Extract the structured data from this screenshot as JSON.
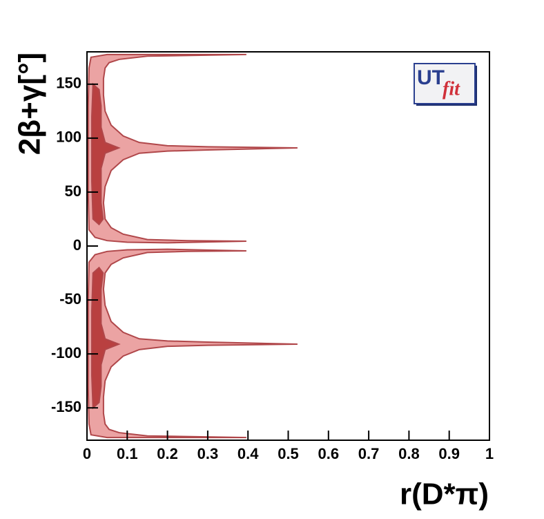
{
  "chart_data": {
    "type": "contour",
    "x_label": "r(D*π)",
    "y_label": "2β+γ[°]",
    "logo": [
      "UT",
      "fit"
    ],
    "xlim": [
      0,
      1
    ],
    "ylim": [
      -180,
      180
    ],
    "xticks": [
      0,
      0.1,
      0.2,
      0.3,
      0.4,
      0.5,
      0.6,
      0.7,
      0.8,
      0.9,
      1
    ],
    "yticks": [
      -150,
      -100,
      -50,
      0,
      50,
      100,
      150
    ],
    "edge_color": "#b0474a",
    "regions": [
      {
        "color": "#eba3a3",
        "x": [
          0.01,
          0.05,
          0.15,
          0.396,
          0.15,
          0.08,
          0.055,
          0.045,
          0.041,
          0.041,
          0.045,
          0.06,
          0.09,
          0.13,
          0.2,
          0.3,
          0.523,
          0.3,
          0.2,
          0.13,
          0.09,
          0.06,
          0.045,
          0.041,
          0.045,
          0.06,
          0.09,
          0.15,
          0.25,
          0.396,
          0.2,
          0.1,
          0.05,
          0.02,
          0.005,
          0.003,
          0.003,
          0.003,
          0.005
        ],
        "y": [
          175,
          177.5,
          177.5,
          177.5,
          176,
          173,
          170,
          165,
          155,
          140,
          125,
          112,
          102,
          96,
          93,
          92,
          91,
          89,
          88,
          86,
          80,
          70,
          55,
          40,
          25,
          17,
          11,
          6,
          5,
          4.5,
          3,
          3.5,
          5,
          8,
          15,
          50,
          90,
          130,
          165
        ]
      },
      {
        "color": "#b94040",
        "x": [
          0.015,
          0.03,
          0.035,
          0.035,
          0.045,
          0.079,
          0.045,
          0.035,
          0.035,
          0.04,
          0.03,
          0.015,
          0.012,
          0.012
        ],
        "y": [
          150,
          145,
          130,
          110,
          96,
          91,
          86,
          72,
          40,
          25,
          20,
          25,
          60,
          120
        ]
      },
      {
        "color": "#eba3a3",
        "x": [
          0.01,
          0.05,
          0.15,
          0.396,
          0.15,
          0.08,
          0.055,
          0.045,
          0.041,
          0.041,
          0.045,
          0.06,
          0.09,
          0.13,
          0.2,
          0.3,
          0.523,
          0.3,
          0.2,
          0.13,
          0.09,
          0.06,
          0.045,
          0.041,
          0.045,
          0.06,
          0.09,
          0.15,
          0.25,
          0.396,
          0.2,
          0.1,
          0.05,
          0.02,
          0.005,
          0.003,
          0.003,
          0.003,
          0.005
        ],
        "y": [
          -175,
          -177.5,
          -177.5,
          -177.5,
          -176,
          -173,
          -170,
          -165,
          -155,
          -140,
          -125,
          -112,
          -102,
          -96,
          -93,
          -92,
          -91,
          -89,
          -88,
          -86,
          -80,
          -70,
          -55,
          -40,
          -25,
          -17,
          -11,
          -6,
          -5,
          -4.5,
          -3,
          -3.5,
          -5,
          -8,
          -15,
          -50,
          -90,
          -130,
          -165
        ]
      },
      {
        "color": "#b94040",
        "x": [
          0.015,
          0.03,
          0.035,
          0.035,
          0.045,
          0.079,
          0.045,
          0.035,
          0.035,
          0.04,
          0.03,
          0.015,
          0.012,
          0.012
        ],
        "y": [
          -150,
          -145,
          -130,
          -110,
          -96,
          -91,
          -86,
          -72,
          -40,
          -25,
          -20,
          -25,
          -60,
          -120
        ]
      }
    ]
  }
}
